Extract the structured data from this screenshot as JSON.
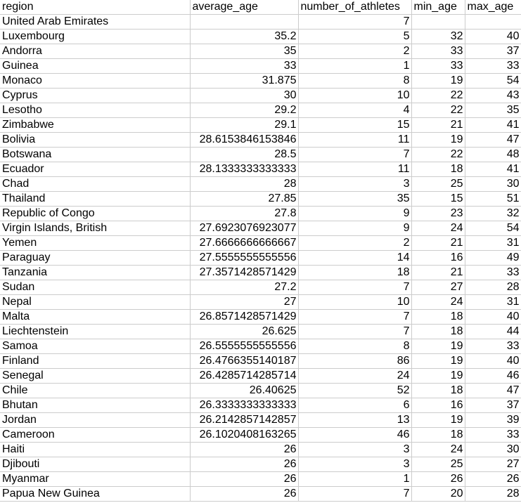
{
  "columns": [
    "region",
    "average_age",
    "number_of_athletes",
    "min_age",
    "max_age"
  ],
  "rows": [
    [
      "United Arab Emirates",
      "",
      "7",
      "",
      ""
    ],
    [
      "Luxembourg",
      "35.2",
      "5",
      "32",
      "40"
    ],
    [
      "Andorra",
      "35",
      "2",
      "33",
      "37"
    ],
    [
      "Guinea",
      "33",
      "1",
      "33",
      "33"
    ],
    [
      "Monaco",
      "31.875",
      "8",
      "19",
      "54"
    ],
    [
      "Cyprus",
      "30",
      "10",
      "22",
      "43"
    ],
    [
      "Lesotho",
      "29.2",
      "4",
      "22",
      "35"
    ],
    [
      "Zimbabwe",
      "29.1",
      "15",
      "21",
      "41"
    ],
    [
      "Bolivia",
      "28.6153846153846",
      "11",
      "19",
      "47"
    ],
    [
      "Botswana",
      "28.5",
      "7",
      "22",
      "48"
    ],
    [
      "Ecuador",
      "28.1333333333333",
      "11",
      "18",
      "41"
    ],
    [
      "Chad",
      "28",
      "3",
      "25",
      "30"
    ],
    [
      "Thailand",
      "27.85",
      "35",
      "15",
      "51"
    ],
    [
      "Republic of Congo",
      "27.8",
      "9",
      "23",
      "32"
    ],
    [
      "Virgin Islands, British",
      "27.6923076923077",
      "9",
      "24",
      "54"
    ],
    [
      "Yemen",
      "27.6666666666667",
      "2",
      "21",
      "31"
    ],
    [
      "Paraguay",
      "27.5555555555556",
      "14",
      "16",
      "49"
    ],
    [
      "Tanzania",
      "27.3571428571429",
      "18",
      "21",
      "33"
    ],
    [
      "Sudan",
      "27.2",
      "7",
      "27",
      "28"
    ],
    [
      "Nepal",
      "27",
      "10",
      "24",
      "31"
    ],
    [
      "Malta",
      "26.8571428571429",
      "7",
      "18",
      "40"
    ],
    [
      "Liechtenstein",
      "26.625",
      "7",
      "18",
      "44"
    ],
    [
      "Samoa",
      "26.5555555555556",
      "8",
      "19",
      "33"
    ],
    [
      "Finland",
      "26.4766355140187",
      "86",
      "19",
      "40"
    ],
    [
      "Senegal",
      "26.4285714285714",
      "24",
      "19",
      "46"
    ],
    [
      "Chile",
      "26.40625",
      "52",
      "18",
      "47"
    ],
    [
      "Bhutan",
      "26.3333333333333",
      "6",
      "16",
      "37"
    ],
    [
      "Jordan",
      "26.2142857142857",
      "13",
      "19",
      "39"
    ],
    [
      "Cameroon",
      "26.1020408163265",
      "46",
      "18",
      "33"
    ],
    [
      "Haiti",
      "26",
      "3",
      "24",
      "30"
    ],
    [
      "Djibouti",
      "26",
      "3",
      "25",
      "27"
    ],
    [
      "Myanmar",
      "26",
      "1",
      "26",
      "26"
    ],
    [
      "Papua New Guinea",
      "26",
      "7",
      "20",
      "28"
    ]
  ]
}
